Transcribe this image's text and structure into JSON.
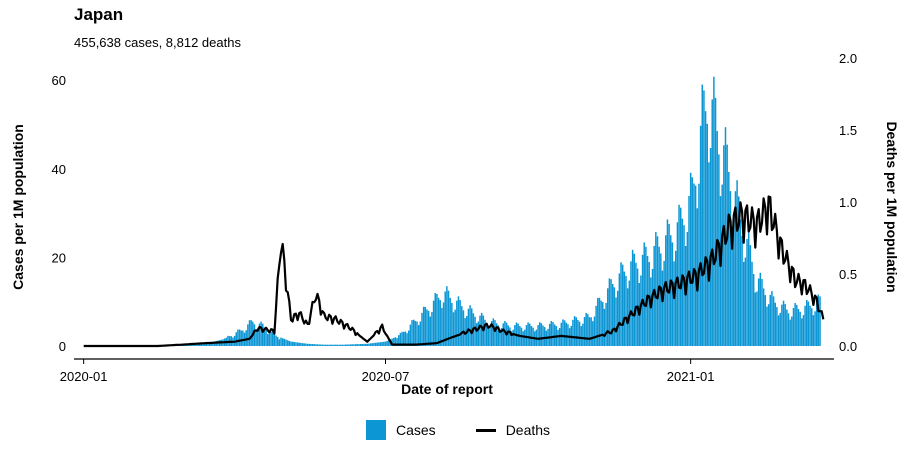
{
  "header": {
    "title": "Japan",
    "subtitle": "455,638 cases, 8,812 deaths"
  },
  "legend": {
    "cases_label": "Cases",
    "deaths_label": "Deaths"
  },
  "colors": {
    "cases": "#0d96d4",
    "deaths": "#000000",
    "axis": "#000000"
  },
  "chart_data": {
    "type": "bar",
    "xlabel": "Date of report",
    "ylabel": "Cases per 1M population",
    "y2label": "Deaths per 1M population",
    "xlim": [
      "2019-12-31",
      "2021-03-23"
    ],
    "x_ticks": [
      "2020-01",
      "2020-07",
      "2021-01"
    ],
    "ylim": [
      0,
      65
    ],
    "y_ticks": [
      0,
      20,
      40,
      60
    ],
    "y2lim": [
      0,
      2.0
    ],
    "y2_ticks": [
      "0.0",
      "0.5",
      "1.0",
      "1.5",
      "2.0"
    ],
    "grid": false,
    "legend_position": "bottom",
    "series": [
      {
        "name": "Cases",
        "kind": "bar",
        "axis": "left",
        "points": [
          [
            "2020-01-01",
            0
          ],
          [
            "2020-02-01",
            0.1
          ],
          [
            "2020-03-01",
            0.4
          ],
          [
            "2020-03-15",
            0.6
          ],
          [
            "2020-03-25",
            1.5
          ],
          [
            "2020-04-05",
            3.5
          ],
          [
            "2020-04-12",
            5.5
          ],
          [
            "2020-04-18",
            4.5
          ],
          [
            "2020-04-25",
            2.5
          ],
          [
            "2020-05-05",
            1.0
          ],
          [
            "2020-05-15",
            0.5
          ],
          [
            "2020-05-25",
            0.3
          ],
          [
            "2020-06-05",
            0.3
          ],
          [
            "2020-06-20",
            0.5
          ],
          [
            "2020-07-01",
            1.0
          ],
          [
            "2020-07-10",
            2.5
          ],
          [
            "2020-07-20",
            6.0
          ],
          [
            "2020-07-28",
            9.0
          ],
          [
            "2020-08-05",
            12.0
          ],
          [
            "2020-08-12",
            10.0
          ],
          [
            "2020-08-20",
            8.0
          ],
          [
            "2020-09-01",
            5.5
          ],
          [
            "2020-09-15",
            4.5
          ],
          [
            "2020-10-01",
            4.5
          ],
          [
            "2020-10-15",
            5.0
          ],
          [
            "2020-11-01",
            6.5
          ],
          [
            "2020-11-15",
            14.0
          ],
          [
            "2020-11-25",
            18.0
          ],
          [
            "2020-12-05",
            20.0
          ],
          [
            "2020-12-15",
            23.0
          ],
          [
            "2020-12-25",
            27.0
          ],
          [
            "2021-01-02",
            34.0
          ],
          [
            "2021-01-08",
            50.0
          ],
          [
            "2021-01-12",
            56.0
          ],
          [
            "2021-01-18",
            47.0
          ],
          [
            "2021-01-25",
            38.0
          ],
          [
            "2021-02-01",
            27.0
          ],
          [
            "2021-02-10",
            15.0
          ],
          [
            "2021-02-20",
            10.0
          ],
          [
            "2021-03-01",
            8.0
          ],
          [
            "2021-03-10",
            8.5
          ],
          [
            "2021-03-20",
            10.0
          ]
        ]
      },
      {
        "name": "Deaths",
        "kind": "line",
        "axis": "right",
        "points": [
          [
            "2020-01-01",
            0
          ],
          [
            "2020-02-15",
            0
          ],
          [
            "2020-03-01",
            0.01
          ],
          [
            "2020-03-15",
            0.02
          ],
          [
            "2020-04-01",
            0.03
          ],
          [
            "2020-04-10",
            0.05
          ],
          [
            "2020-04-15",
            0.12
          ],
          [
            "2020-04-25",
            0.1
          ],
          [
            "2020-04-29",
            0.72
          ],
          [
            "2020-05-05",
            0.18
          ],
          [
            "2020-05-10",
            0.22
          ],
          [
            "2020-05-15",
            0.14
          ],
          [
            "2020-05-20",
            0.35
          ],
          [
            "2020-05-25",
            0.2
          ],
          [
            "2020-06-01",
            0.18
          ],
          [
            "2020-06-10",
            0.12
          ],
          [
            "2020-06-20",
            0.03
          ],
          [
            "2020-06-29",
            0.13
          ],
          [
            "2020-07-05",
            0.01
          ],
          [
            "2020-07-20",
            0.01
          ],
          [
            "2020-08-01",
            0.02
          ],
          [
            "2020-08-10",
            0.06
          ],
          [
            "2020-08-20",
            0.1
          ],
          [
            "2020-09-01",
            0.14
          ],
          [
            "2020-09-10",
            0.1
          ],
          [
            "2020-09-20",
            0.07
          ],
          [
            "2020-10-01",
            0.05
          ],
          [
            "2020-10-15",
            0.07
          ],
          [
            "2020-11-01",
            0.05
          ],
          [
            "2020-11-15",
            0.1
          ],
          [
            "2020-11-25",
            0.2
          ],
          [
            "2020-12-05",
            0.3
          ],
          [
            "2020-12-15",
            0.38
          ],
          [
            "2020-12-25",
            0.42
          ],
          [
            "2021-01-05",
            0.48
          ],
          [
            "2021-01-15",
            0.6
          ],
          [
            "2021-01-25",
            0.82
          ],
          [
            "2021-02-01",
            0.88
          ],
          [
            "2021-02-10",
            0.82
          ],
          [
            "2021-02-17",
            0.95
          ],
          [
            "2021-02-25",
            0.65
          ],
          [
            "2021-03-05",
            0.45
          ],
          [
            "2021-03-12",
            0.4
          ],
          [
            "2021-03-18",
            0.3
          ],
          [
            "2021-03-22",
            0.18
          ]
        ]
      }
    ]
  }
}
